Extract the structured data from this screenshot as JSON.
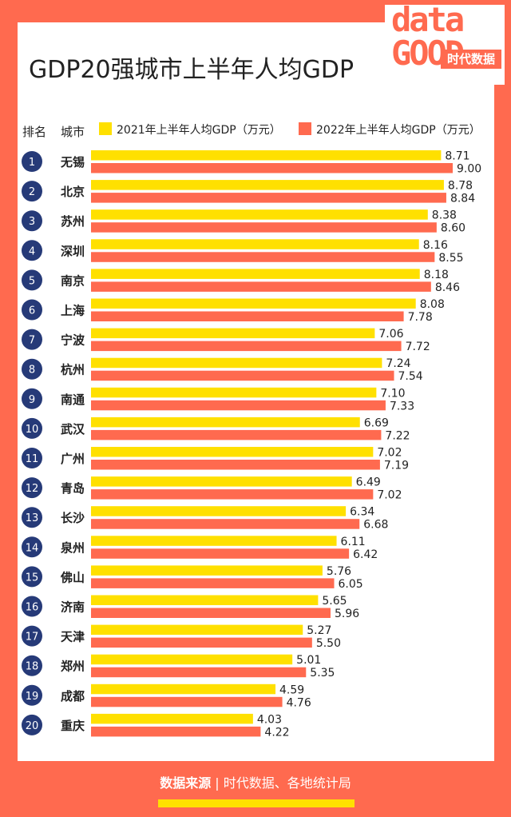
{
  "title": "GDP20强城市上半年人均GDP",
  "logo": {
    "top": "data",
    "bottom": "GOOD",
    "badge": "时代数据"
  },
  "header": {
    "rank": "排名",
    "city": "城市"
  },
  "colors": {
    "y2021": "#ffe000",
    "y2022": "#ff6a4f",
    "rank_circle": "#263a78"
  },
  "footer": {
    "label": "数据来源",
    "separator": "|",
    "source": "时代数据、各地统计局"
  },
  "chart_data": {
    "type": "bar",
    "orientation": "horizontal",
    "title": "GDP20强城市上半年人均GDP",
    "ranks": [
      1,
      2,
      3,
      4,
      5,
      6,
      7,
      8,
      9,
      10,
      11,
      12,
      13,
      14,
      15,
      16,
      17,
      18,
      19,
      20
    ],
    "categories": [
      "无锡",
      "北京",
      "苏州",
      "深圳",
      "南京",
      "上海",
      "宁波",
      "杭州",
      "南通",
      "武汉",
      "广州",
      "青岛",
      "长沙",
      "泉州",
      "佛山",
      "济南",
      "天津",
      "郑州",
      "成都",
      "重庆"
    ],
    "series": [
      {
        "name": "2021年上半年人均GDP（万元）",
        "values": [
          8.71,
          8.78,
          8.38,
          8.16,
          8.18,
          8.08,
          7.06,
          7.24,
          7.1,
          6.69,
          7.02,
          6.49,
          6.34,
          6.11,
          5.76,
          5.65,
          5.27,
          5.01,
          4.59,
          4.03
        ]
      },
      {
        "name": "2022年上半年人均GDP（万元）",
        "values": [
          9.0,
          8.84,
          8.6,
          8.55,
          8.46,
          7.78,
          7.72,
          7.54,
          7.33,
          7.22,
          7.19,
          7.02,
          6.68,
          6.42,
          6.05,
          5.96,
          5.5,
          5.35,
          4.76,
          4.22
        ]
      }
    ],
    "xlim": [
      0,
      9
    ],
    "grid": false,
    "legend": "top"
  }
}
